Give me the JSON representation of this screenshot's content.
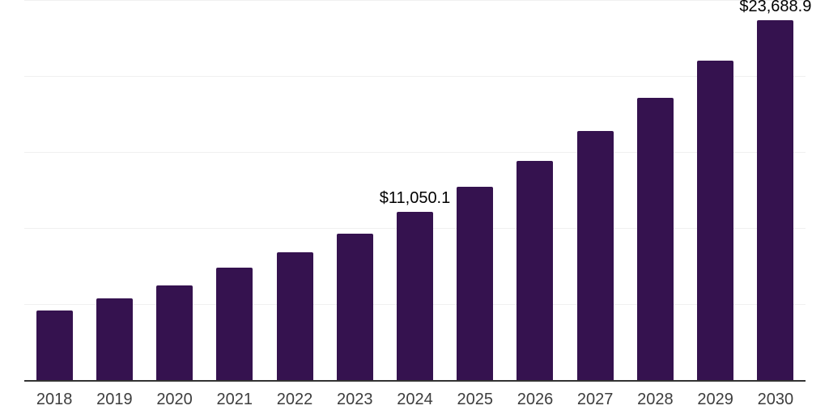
{
  "chart_data": {
    "type": "bar",
    "title": "",
    "categories": [
      "2018",
      "2019",
      "2020",
      "2021",
      "2022",
      "2023",
      "2024",
      "2025",
      "2026",
      "2027",
      "2028",
      "2029",
      "2030"
    ],
    "values": [
      4570,
      5360,
      6220,
      7390,
      8430,
      9620,
      11050.1,
      12710,
      14430,
      16400,
      18590,
      21030,
      23688.9
    ],
    "data_labels": [
      {
        "category": "2024",
        "text": "$11,050.1"
      },
      {
        "category": "2030",
        "text": "$23,688.9"
      }
    ],
    "xlabel": "",
    "ylabel": "",
    "ylim": [
      0,
      25000
    ],
    "gridline_step": 5000,
    "grid": "horizontal-only",
    "legend": "none",
    "y_axis_tick_labels": "none",
    "colors": {
      "bar": "#35124f",
      "axis_line": "#333333",
      "gridline": "#f0f0f0",
      "tick_label": "#3d3d3d",
      "data_label": "#000000",
      "background": "#ffffff"
    }
  }
}
